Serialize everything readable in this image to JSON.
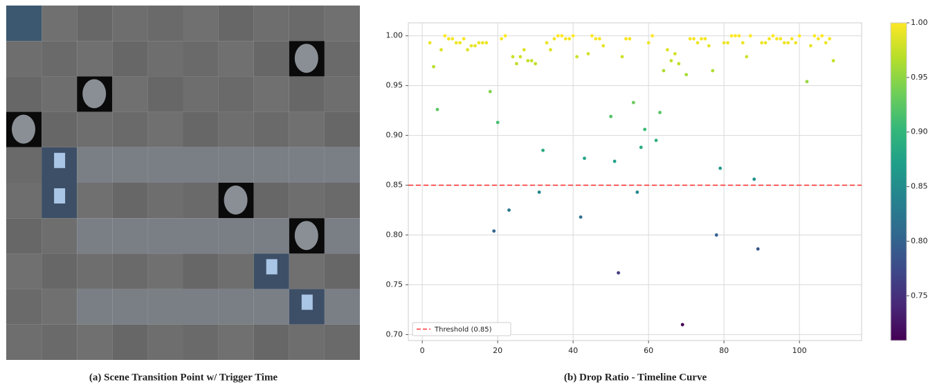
{
  "panels": {
    "a": {
      "caption": "(a) Scene Transition Point w/ Trigger Time"
    },
    "b": {
      "caption": "(b) Drop Ratio - Timeline Curve"
    }
  },
  "chart_data": {
    "type": "scatter",
    "x": [
      2,
      3,
      4,
      5,
      6,
      7,
      8,
      9,
      10,
      11,
      12,
      13,
      14,
      15,
      16,
      17,
      18,
      19,
      20,
      21,
      22,
      23,
      24,
      25,
      26,
      27,
      28,
      29,
      30,
      31,
      32,
      33,
      34,
      35,
      36,
      37,
      38,
      39,
      40,
      41,
      42,
      43,
      44,
      45,
      46,
      47,
      48,
      50,
      51,
      52,
      53,
      54,
      55,
      56,
      57,
      58,
      59,
      60,
      61,
      62,
      63,
      64,
      65,
      66,
      67,
      68,
      69,
      70,
      71,
      72,
      73,
      74,
      75,
      76,
      77,
      78,
      79,
      80,
      81,
      82,
      83,
      84,
      85,
      86,
      87,
      88,
      89,
      90,
      91,
      92,
      93,
      94,
      95,
      96,
      97,
      98,
      99,
      100,
      102,
      103,
      104,
      105,
      106,
      107,
      108,
      109
    ],
    "values": [
      0.993,
      0.969,
      0.926,
      0.986,
      1.0,
      0.997,
      0.997,
      0.993,
      0.993,
      0.997,
      0.986,
      0.99,
      0.99,
      0.993,
      0.993,
      0.993,
      0.944,
      0.804,
      0.913,
      0.997,
      1.0,
      0.825,
      0.979,
      0.972,
      0.979,
      0.986,
      0.975,
      0.975,
      0.972,
      0.843,
      0.885,
      0.993,
      0.986,
      0.997,
      1.0,
      1.0,
      0.997,
      0.997,
      1.0,
      0.979,
      0.818,
      0.877,
      0.982,
      1.0,
      0.997,
      0.997,
      0.99,
      0.919,
      0.874,
      0.762,
      0.979,
      0.997,
      0.997,
      0.933,
      0.843,
      0.888,
      0.906,
      0.993,
      1.0,
      0.895,
      0.923,
      0.965,
      0.986,
      0.975,
      0.982,
      0.972,
      0.71,
      0.961,
      0.997,
      0.997,
      0.993,
      0.997,
      0.997,
      0.99,
      0.965,
      0.8,
      0.867,
      0.993,
      0.993,
      1.0,
      1.0,
      1.0,
      0.993,
      0.979,
      1.0,
      0.856,
      0.786,
      0.993,
      0.993,
      0.997,
      1.0,
      0.997,
      0.997,
      0.993,
      0.993,
      0.997,
      0.993,
      1.0,
      0.954,
      0.99,
      1.0,
      0.997,
      1.0,
      0.993,
      0.997,
      0.975
    ],
    "xlim": [
      -3.7,
      116.5
    ],
    "ylim": [
      0.694,
      1.013
    ],
    "xticks": [
      0,
      20,
      40,
      60,
      80,
      100
    ],
    "yticks": [
      {
        "value": 0.7,
        "label": "0.70"
      },
      0.75,
      {
        "value": 0.8,
        "label": "0.80"
      },
      0.85,
      {
        "value": 0.9,
        "label": "0.90"
      },
      0.95,
      {
        "value": 1.0,
        "label": "1.00"
      }
    ],
    "grid": true,
    "threshold": {
      "value": 0.85,
      "label": "Threshold (0.85)",
      "color": "#ff3333"
    },
    "legend": "lower left",
    "colorbar": {
      "colormap": "viridis",
      "clim": [
        0.709,
        1.0
      ],
      "ticks": [
        0.75,
        {
          "value": 0.8,
          "label": "0.80"
        },
        0.85,
        {
          "value": 0.9,
          "label": "0.90"
        },
        0.95,
        {
          "value": 1.0,
          "label": "1.00"
        }
      ]
    }
  }
}
